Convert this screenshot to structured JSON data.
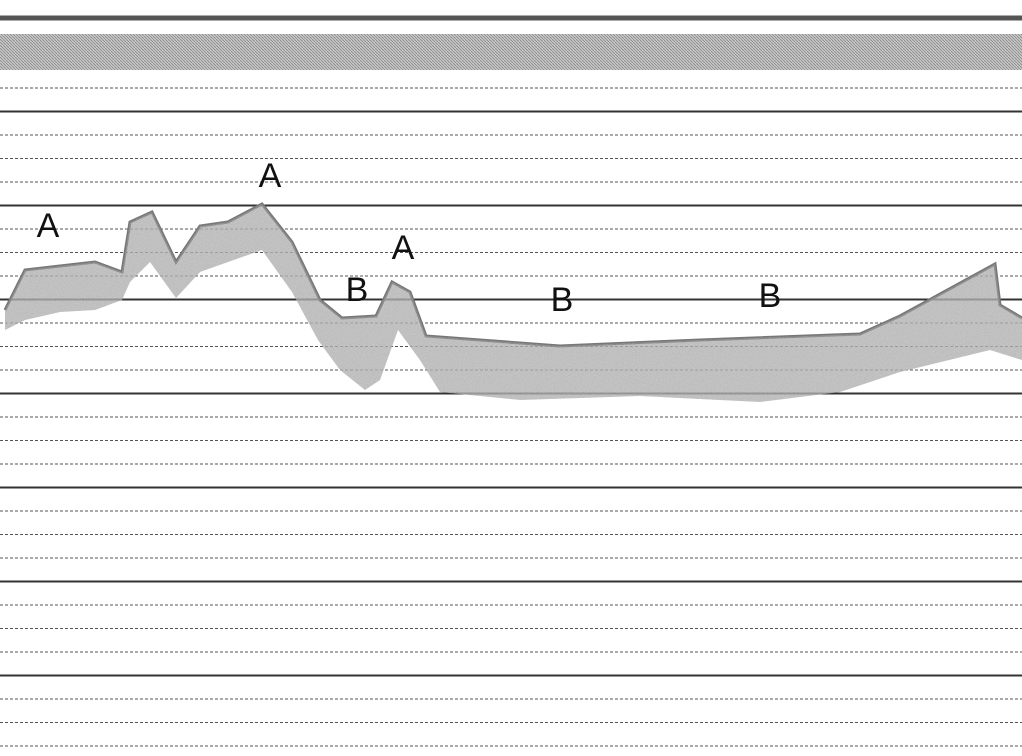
{
  "annotations": [
    {
      "label": "A"
    },
    {
      "label": "A"
    },
    {
      "label": "A"
    },
    {
      "label": "B"
    },
    {
      "label": "B"
    },
    {
      "label": "B"
    }
  ]
}
